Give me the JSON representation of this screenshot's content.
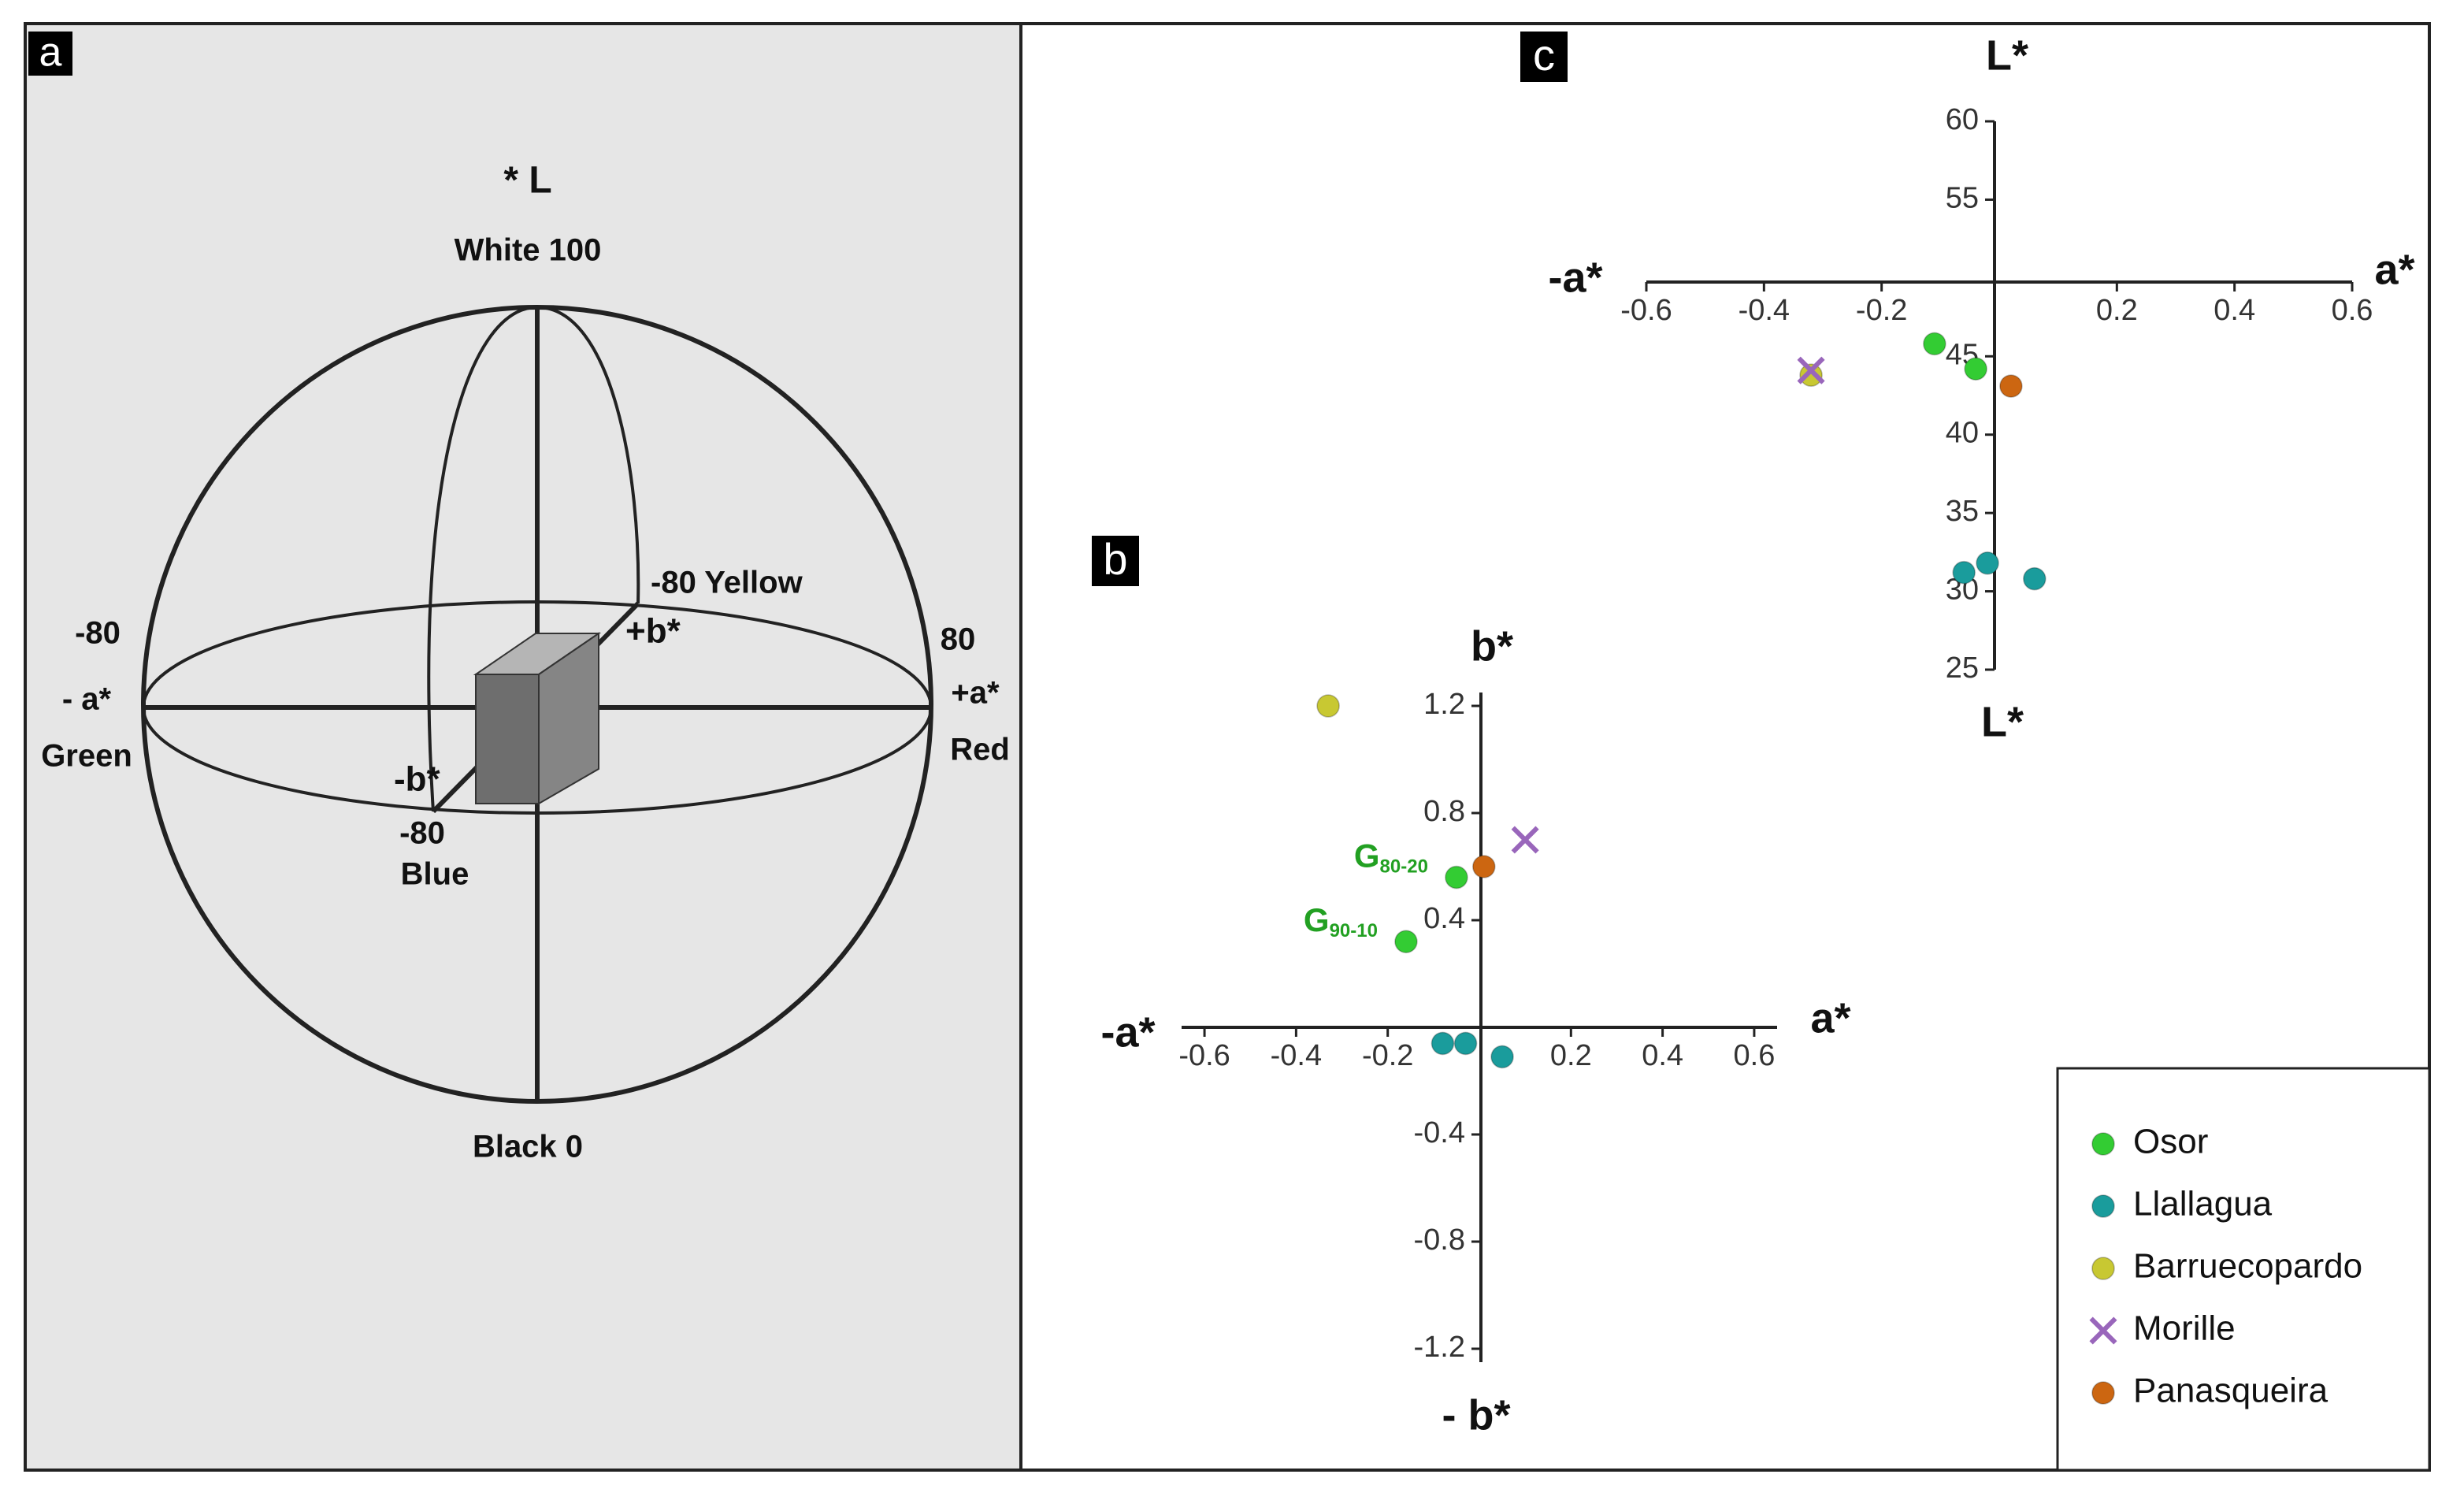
{
  "diagram": {
    "panel_label": "a",
    "labels": {
      "l_axis": "* L",
      "white": "White 100",
      "yellow": "-80 Yellow",
      "plus_b": "+b*",
      "left_num": "-80",
      "minus_a": "- a*",
      "green": "Green",
      "right_num": "80",
      "plus_a": "+a*",
      "red": "Red",
      "minus_b": "-b*",
      "blue_num": "-80",
      "blue": "Blue",
      "black": "Black 0"
    }
  },
  "chart_data": [
    {
      "type": "scatter",
      "panel_label": "b",
      "y_label_top": "b*",
      "y_label_bottom": "- b*",
      "x_label_left": "-a*",
      "x_label_right": "a*",
      "xlim": [
        -0.65,
        0.65
      ],
      "ylim": [
        -1.25,
        1.25
      ],
      "xticks": [
        -0.6,
        -0.4,
        -0.2,
        0.2,
        0.4,
        0.6
      ],
      "yticks": [
        1.2,
        0.8,
        0.4,
        -0.4,
        -0.8,
        -1.2
      ],
      "annotations": [
        {
          "text": "G",
          "sub": "80-20",
          "x": -0.05,
          "y": 0.56
        },
        {
          "text": "G",
          "sub": "90-10",
          "x": -0.16,
          "y": 0.32
        }
      ],
      "legend": "lower right",
      "series": [
        {
          "name": "Osor",
          "color": "#33cc33",
          "marker": "o",
          "x": [
            -0.05,
            -0.16
          ],
          "y": [
            0.56,
            0.32
          ]
        },
        {
          "name": "Llallagua",
          "color": "#1a9c9c",
          "marker": "o",
          "x": [
            -0.08,
            -0.03,
            0.05
          ],
          "y": [
            -0.06,
            -0.06,
            -0.11
          ]
        },
        {
          "name": "Barruecopardo",
          "color": "#c8c832",
          "marker": "o",
          "x": [
            -0.33
          ],
          "y": [
            1.2
          ]
        },
        {
          "name": "Morille",
          "color": "#9966bb",
          "marker": "x",
          "x": [
            0.1
          ],
          "y": [
            0.7
          ]
        },
        {
          "name": "Panasqueira",
          "color": "#cc6611",
          "marker": "o",
          "x": [
            0.01
          ],
          "y": [
            0.6
          ]
        }
      ]
    },
    {
      "type": "scatter",
      "panel_label": "c",
      "y_label_top": "L*",
      "y_label_bottom": "L*",
      "x_label_left": "-a*",
      "x_label_right": "a*",
      "xlim": [
        -0.6,
        0.6
      ],
      "ylim": [
        25,
        60
      ],
      "xticks": [
        -0.6,
        -0.4,
        -0.2,
        0.2,
        0.4,
        0.6
      ],
      "yticks": [
        60,
        55,
        45,
        40,
        35,
        30,
        25
      ],
      "series": [
        {
          "color": "#33cc33",
          "marker": "o",
          "x": [
            -0.11,
            -0.04
          ],
          "y": [
            45.8,
            44.2
          ]
        },
        {
          "color": "#1a9c9c",
          "marker": "o",
          "x": [
            -0.06,
            -0.02,
            0.06
          ],
          "y": [
            31.2,
            31.8,
            30.8
          ]
        },
        {
          "color": "#c8c832",
          "marker": "o",
          "x": [
            -0.32
          ],
          "y": [
            43.8
          ]
        },
        {
          "color": "#9966bb",
          "marker": "x",
          "x": [
            -0.32
          ],
          "y": [
            44.1
          ]
        },
        {
          "color": "#cc6611",
          "marker": "o",
          "x": [
            0.02
          ],
          "y": [
            43.1
          ]
        }
      ]
    }
  ]
}
